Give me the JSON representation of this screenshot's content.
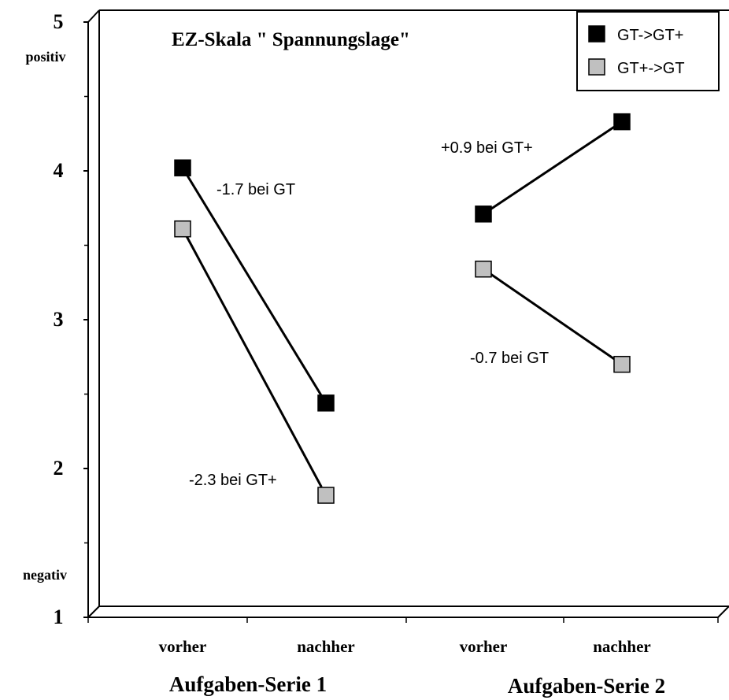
{
  "chart_data": {
    "type": "line",
    "title": "EZ-Skala \" Spannungslage\"",
    "y_axis": {
      "ylim": [
        1,
        5
      ],
      "ticks": [
        "1",
        "2",
        "3",
        "4",
        "5"
      ],
      "top_label": "positiv",
      "bottom_label": "negativ"
    },
    "groups": [
      {
        "name": "Aufgaben-Serie 1",
        "categories": [
          "vorher",
          "nachher"
        ]
      },
      {
        "name": "Aufgaben-Serie 2",
        "categories": [
          "vorher",
          "nachher"
        ]
      }
    ],
    "series": [
      {
        "name": "GT->GT+",
        "color": "#000000",
        "values": [
          [
            4.02,
            2.44
          ],
          [
            3.71,
            4.33
          ]
        ]
      },
      {
        "name": "GT+->GT",
        "color": "#c0c0c0",
        "values": [
          [
            3.61,
            1.82
          ],
          [
            3.34,
            2.7
          ]
        ]
      }
    ],
    "annotations": [
      {
        "text": "-1.7 bei GT"
      },
      {
        "text": "-2.3 bei GT+"
      },
      {
        "text": "+0.9 bei GT+"
      },
      {
        "text": "-0.7 bei GT"
      }
    ],
    "legend_position": "top-right",
    "grid": false
  }
}
